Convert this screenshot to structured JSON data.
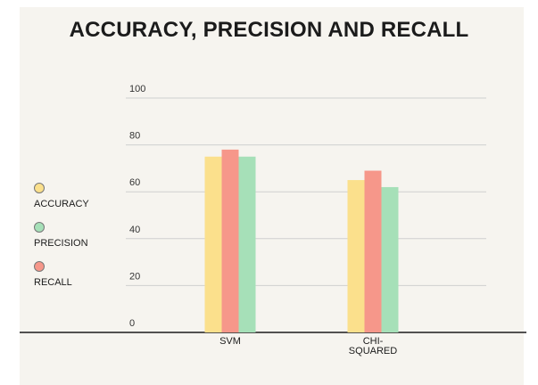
{
  "chart_data": {
    "type": "bar",
    "title": "ACCURACY, PRECISION AND RECALL",
    "categories": [
      "SVM",
      "CHI-\nSQUARED"
    ],
    "series": [
      {
        "name": "ACCURACY",
        "values": [
          75,
          65
        ]
      },
      {
        "name": "PRECISION",
        "values": [
          75,
          62
        ]
      },
      {
        "name": "RECALL",
        "values": [
          78,
          69
        ]
      }
    ],
    "ylim": [
      0,
      100
    ],
    "yticks": [
      "0",
      "20",
      "40",
      "60",
      "80",
      "100"
    ],
    "grid": true,
    "legend_position": "left"
  },
  "colors": {
    "ACCURACY": "#fbe08c",
    "PRECISION": "#a6e0b8",
    "RECALL": "#f6978a"
  }
}
